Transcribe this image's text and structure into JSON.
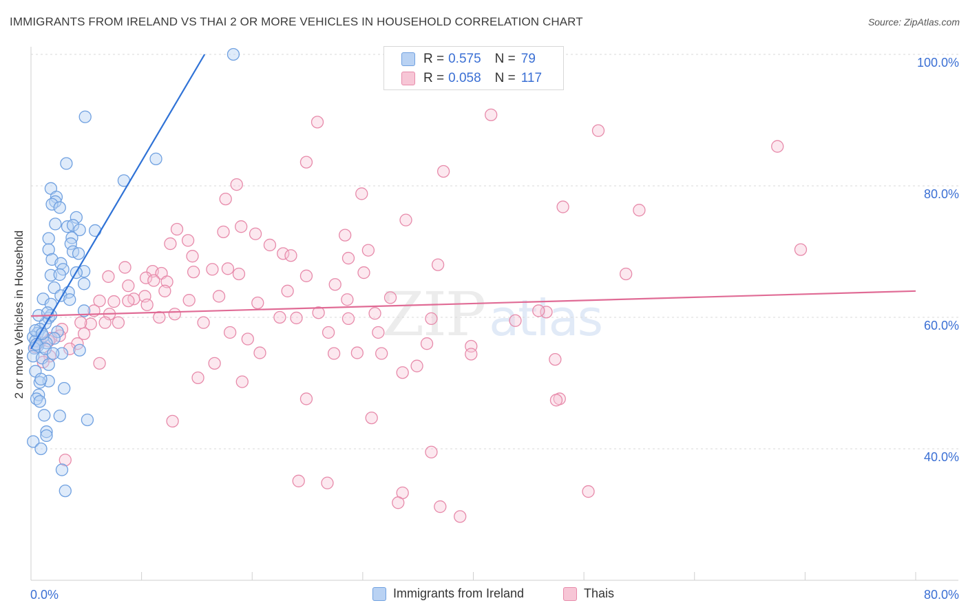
{
  "header": {
    "title": "IMMIGRANTS FROM IRELAND VS THAI 2 OR MORE VEHICLES IN HOUSEHOLD CORRELATION CHART",
    "source": "Source: ZipAtlas.com"
  },
  "watermark": {
    "zip": "ZIP",
    "atlas": "atlas"
  },
  "legend": {
    "rows": [
      {
        "r_label": "R =",
        "r_value": "0.575",
        "n_label": "N =",
        "n_value": "79",
        "color": "#6fa0e0",
        "fill": "#b9d2f3"
      },
      {
        "r_label": "R =",
        "r_value": "0.058",
        "n_label": "N =",
        "n_value": "117",
        "color": "#e78aaa",
        "fill": "#f7c6d6"
      }
    ]
  },
  "bottom_legend": {
    "items": [
      {
        "label": "Immigrants from Ireland",
        "color": "#6fa0e0",
        "fill": "#b9d2f3"
      },
      {
        "label": "Thais",
        "color": "#e78aaa",
        "fill": "#f7c6d6"
      }
    ]
  },
  "chart_data": {
    "type": "scatter",
    "title": "IMMIGRANTS FROM IRELAND VS THAI 2 OR MORE VEHICLES IN HOUSEHOLD CORRELATION CHART",
    "xlabel": "",
    "ylabel": "2 or more Vehicles in Household",
    "xlim": [
      0,
      80
    ],
    "ylim": [
      20,
      100
    ],
    "x_tick_labels": [
      "0.0%",
      "80.0%"
    ],
    "y_ticks": [
      40,
      60,
      80,
      100
    ],
    "y_tick_labels": [
      "40.0%",
      "60.0%",
      "80.0%",
      "100.0%"
    ],
    "grid": true,
    "series": [
      {
        "name": "Immigrants from Ireland",
        "color": "#5a8fdb",
        "line_color": "#2f72d6",
        "trend": {
          "x": [
            0,
            15.7
          ],
          "y": [
            55.2,
            100
          ]
        },
        "points": [
          [
            18.3,
            100
          ],
          [
            4.9,
            90.5
          ],
          [
            11.3,
            84.1
          ],
          [
            3.2,
            83.4
          ],
          [
            8.4,
            80.8
          ],
          [
            1.8,
            79.6
          ],
          [
            2.3,
            78.3
          ],
          [
            2.2,
            77.6
          ],
          [
            1.9,
            77.2
          ],
          [
            2.6,
            76.7
          ],
          [
            4.1,
            75.2
          ],
          [
            2.2,
            74.2
          ],
          [
            3.3,
            73.8
          ],
          [
            3.8,
            74.0
          ],
          [
            5.8,
            73.2
          ],
          [
            4.4,
            73.3
          ],
          [
            3.7,
            72.1
          ],
          [
            1.6,
            72.0
          ],
          [
            3.6,
            71.2
          ],
          [
            1.6,
            70.3
          ],
          [
            3.8,
            70.0
          ],
          [
            4.3,
            69.7
          ],
          [
            1.9,
            68.8
          ],
          [
            2.7,
            68.2
          ],
          [
            2.9,
            67.3
          ],
          [
            4.8,
            67.0
          ],
          [
            4.1,
            66.8
          ],
          [
            1.8,
            66.4
          ],
          [
            2.6,
            66.5
          ],
          [
            4.8,
            65.1
          ],
          [
            2.1,
            64.5
          ],
          [
            3.4,
            63.8
          ],
          [
            2.7,
            63.3
          ],
          [
            1.1,
            62.8
          ],
          [
            3.5,
            62.7
          ],
          [
            1.8,
            62.0
          ],
          [
            4.8,
            61.0
          ],
          [
            1.6,
            59.9
          ],
          [
            1.8,
            60.3
          ],
          [
            1.3,
            59.1
          ],
          [
            0.8,
            58.2
          ],
          [
            2.4,
            57.8
          ],
          [
            0.6,
            57.6
          ],
          [
            1.1,
            57.1
          ],
          [
            0.2,
            57.0
          ],
          [
            2.1,
            56.8
          ],
          [
            0.4,
            56.4
          ],
          [
            1.4,
            56.1
          ],
          [
            0.6,
            55.6
          ],
          [
            0.3,
            55.3
          ],
          [
            4.4,
            55.0
          ],
          [
            2.8,
            54.5
          ],
          [
            0.2,
            54.1
          ],
          [
            1.0,
            53.8
          ],
          [
            1.6,
            52.8
          ],
          [
            0.4,
            51.8
          ],
          [
            1.6,
            50.3
          ],
          [
            0.8,
            50.1
          ],
          [
            3.0,
            49.2
          ],
          [
            0.7,
            48.2
          ],
          [
            0.5,
            47.6
          ],
          [
            0.8,
            47.2
          ],
          [
            1.2,
            45.1
          ],
          [
            2.6,
            45.0
          ],
          [
            5.1,
            44.4
          ],
          [
            1.4,
            42.6
          ],
          [
            1.4,
            42.0
          ],
          [
            0.2,
            41.1
          ],
          [
            0.9,
            40.0
          ],
          [
            2.8,
            36.8
          ],
          [
            3.1,
            33.6
          ],
          [
            0.4,
            58.0
          ],
          [
            1.0,
            57.5
          ],
          [
            0.5,
            55.9
          ],
          [
            1.3,
            55.2
          ],
          [
            2.0,
            54.5
          ],
          [
            0.7,
            60.3
          ],
          [
            1.5,
            60.7
          ],
          [
            0.9,
            50.6
          ]
        ]
      },
      {
        "name": "Thais",
        "color": "#e58aaa",
        "line_color": "#e06b95",
        "trend": {
          "x": [
            0,
            80
          ],
          "y": [
            60.2,
            64.0
          ]
        },
        "points": [
          [
            41.6,
            90.8
          ],
          [
            25.9,
            89.7
          ],
          [
            51.3,
            88.4
          ],
          [
            67.5,
            86.0
          ],
          [
            24.9,
            83.6
          ],
          [
            37.3,
            82.2
          ],
          [
            18.6,
            80.2
          ],
          [
            29.9,
            78.8
          ],
          [
            17.6,
            78.0
          ],
          [
            48.1,
            76.8
          ],
          [
            55.0,
            76.3
          ],
          [
            33.9,
            74.8
          ],
          [
            19.0,
            73.8
          ],
          [
            17.4,
            73.0
          ],
          [
            13.2,
            73.4
          ],
          [
            20.3,
            72.7
          ],
          [
            28.4,
            72.5
          ],
          [
            14.2,
            71.7
          ],
          [
            12.6,
            71.2
          ],
          [
            21.6,
            71.0
          ],
          [
            30.5,
            70.2
          ],
          [
            22.8,
            69.7
          ],
          [
            14.6,
            69.3
          ],
          [
            23.5,
            69.4
          ],
          [
            69.6,
            70.3
          ],
          [
            28.7,
            69.0
          ],
          [
            36.8,
            68.0
          ],
          [
            8.5,
            67.6
          ],
          [
            16.4,
            67.3
          ],
          [
            17.8,
            67.4
          ],
          [
            11.0,
            67.0
          ],
          [
            14.7,
            66.9
          ],
          [
            11.8,
            66.7
          ],
          [
            18.8,
            66.6
          ],
          [
            7.0,
            66.2
          ],
          [
            24.9,
            66.3
          ],
          [
            10.4,
            66.0
          ],
          [
            30.1,
            66.8
          ],
          [
            53.8,
            66.6
          ],
          [
            11.1,
            65.6
          ],
          [
            12.3,
            65.4
          ],
          [
            8.8,
            64.8
          ],
          [
            27.5,
            65.0
          ],
          [
            12.1,
            64.0
          ],
          [
            23.2,
            64.0
          ],
          [
            17.0,
            63.2
          ],
          [
            10.3,
            63.2
          ],
          [
            9.3,
            62.8
          ],
          [
            14.3,
            62.6
          ],
          [
            28.6,
            62.7
          ],
          [
            32.5,
            63.0
          ],
          [
            8.8,
            62.5
          ],
          [
            6.2,
            62.5
          ],
          [
            20.5,
            62.2
          ],
          [
            10.5,
            61.9
          ],
          [
            7.5,
            62.4
          ],
          [
            5.7,
            61.0
          ],
          [
            7.1,
            60.5
          ],
          [
            31.1,
            60.6
          ],
          [
            28.7,
            59.8
          ],
          [
            7.9,
            59.2
          ],
          [
            13.0,
            60.5
          ],
          [
            36.2,
            59.8
          ],
          [
            46.6,
            60.8
          ],
          [
            43.8,
            59.5
          ],
          [
            45.9,
            61.0
          ],
          [
            11.6,
            60.0
          ],
          [
            24.0,
            59.9
          ],
          [
            6.7,
            59.2
          ],
          [
            15.6,
            59.2
          ],
          [
            22.5,
            60.0
          ],
          [
            26.0,
            60.7
          ],
          [
            5.4,
            59.0
          ],
          [
            4.5,
            59.2
          ],
          [
            2.8,
            58.2
          ],
          [
            18.0,
            57.7
          ],
          [
            26.9,
            57.7
          ],
          [
            31.4,
            57.7
          ],
          [
            4.8,
            57.5
          ],
          [
            2.6,
            57.2
          ],
          [
            1.8,
            56.8
          ],
          [
            19.6,
            56.7
          ],
          [
            0.8,
            56.2
          ],
          [
            4.2,
            56.0
          ],
          [
            1.6,
            56.4
          ],
          [
            35.8,
            56.0
          ],
          [
            0.4,
            55.5
          ],
          [
            39.8,
            55.6
          ],
          [
            3.5,
            55.2
          ],
          [
            20.7,
            54.6
          ],
          [
            27.4,
            54.5
          ],
          [
            29.5,
            54.6
          ],
          [
            31.7,
            54.5
          ],
          [
            1.7,
            54.1
          ],
          [
            39.8,
            54.4
          ],
          [
            47.4,
            53.6
          ],
          [
            16.6,
            53.0
          ],
          [
            6.2,
            53.0
          ],
          [
            1.1,
            53.2
          ],
          [
            34.9,
            52.6
          ],
          [
            33.6,
            51.6
          ],
          [
            15.1,
            50.8
          ],
          [
            19.1,
            50.2
          ],
          [
            24.9,
            47.6
          ],
          [
            47.8,
            47.6
          ],
          [
            47.5,
            47.4
          ],
          [
            30.8,
            44.7
          ],
          [
            12.8,
            44.2
          ],
          [
            3.1,
            38.3
          ],
          [
            36.2,
            39.5
          ],
          [
            24.2,
            35.1
          ],
          [
            26.8,
            34.8
          ],
          [
            33.6,
            33.3
          ],
          [
            33.2,
            31.8
          ],
          [
            37.0,
            31.2
          ],
          [
            50.4,
            33.5
          ],
          [
            38.8,
            29.7
          ]
        ]
      }
    ]
  }
}
